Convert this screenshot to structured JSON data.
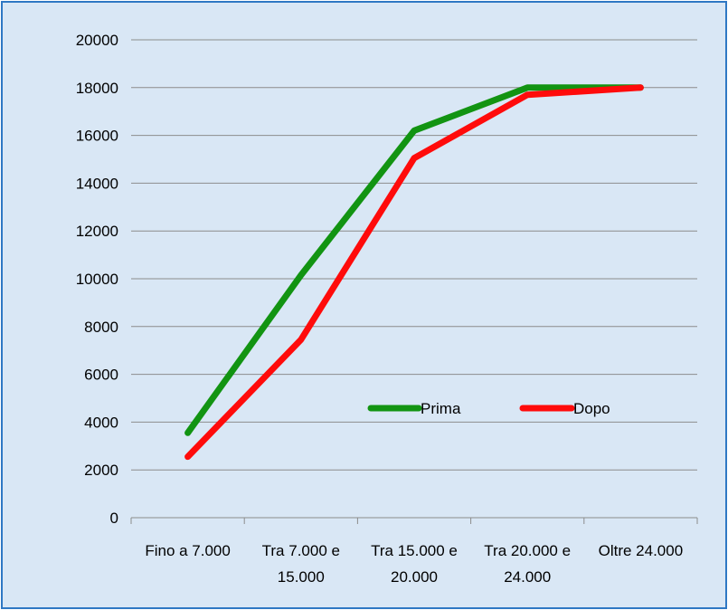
{
  "chart_data": {
    "type": "line",
    "categories": [
      [
        "Fino a 7.000",
        ""
      ],
      [
        "Tra 7.000 e",
        "15.000"
      ],
      [
        "Tra 15.000 e",
        "20.000"
      ],
      [
        "Tra 20.000 e",
        "24.000"
      ],
      [
        "Oltre 24.000",
        ""
      ]
    ],
    "series": [
      {
        "name": "Prima",
        "color": "#129412",
        "values": [
          3550,
          10150,
          16200,
          18000,
          18000
        ]
      },
      {
        "name": "Dopo",
        "color": "#ff0b0b",
        "values": [
          2550,
          7450,
          15050,
          17700,
          18000
        ]
      }
    ],
    "ylim": [
      0,
      20000
    ],
    "yticks": [
      0,
      2000,
      4000,
      6000,
      8000,
      10000,
      12000,
      14000,
      16000,
      18000,
      20000
    ],
    "grid": true,
    "legend": "inside-lower-right",
    "background": "#d9e7f5",
    "border_color": "#2f78c4"
  }
}
